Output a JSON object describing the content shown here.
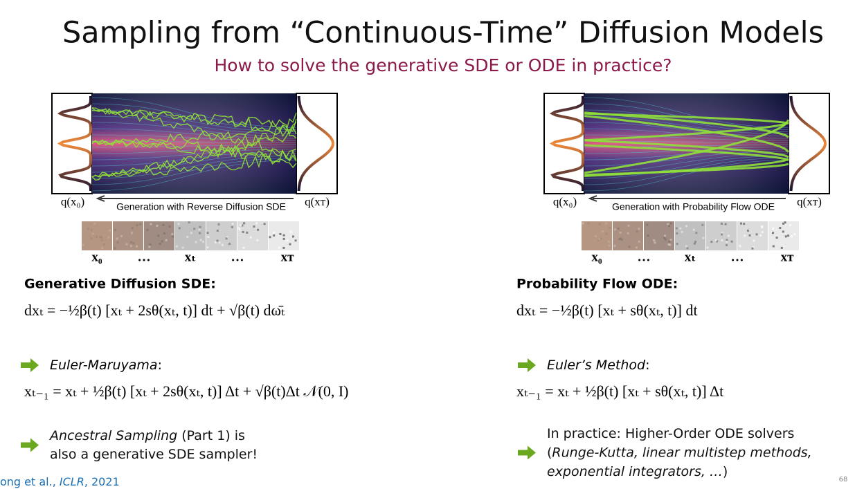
{
  "title": "Sampling from “Continuous-Time” Diffusion Models",
  "subtitle": "How to solve the generative SDE or ODE in practice?",
  "panels": [
    {
      "left_label": "q(x₀)",
      "right_label": "q(xᴛ)",
      "caption": "Generation with Reverse Diffusion SDE",
      "strip_labels": [
        "x₀",
        "…",
        "xₜ",
        "…",
        "xᴛ"
      ],
      "heading": "Generative Diffusion SDE:",
      "equation": "dxₜ = −½β(t) [xₜ + 2sθ(xₜ, t)] dt + √β(t) dω̄ₜ",
      "method": "Euler-Maruyama",
      "method_suffix": ":",
      "update": "xₜ₋₁ = xₜ + ½β(t) [xₜ + 2sθ(xₜ, t)] Δt + √β(t)Δt 𝒩(0, I)",
      "note": [
        [
          {
            "text": "Ancestral Sampling",
            "italic": true
          },
          {
            "text": " (Part 1) is",
            "italic": false
          }
        ],
        [
          {
            "text": "also a generative SDE sampler!",
            "italic": false
          }
        ]
      ]
    },
    {
      "left_label": "q(x₀)",
      "right_label": "q(xᴛ)",
      "caption": "Generation with Probability Flow ODE",
      "strip_labels": [
        "x₀",
        "…",
        "xₜ",
        "…",
        "xᴛ"
      ],
      "heading": "Probability Flow ODE:",
      "equation": "dxₜ = −½β(t) [xₜ + sθ(xₜ, t)] dt",
      "method": "Euler’s Method",
      "method_suffix": ":",
      "update": "xₜ₋₁ = xₜ + ½β(t) [xₜ + sθ(xₜ, t)] Δt",
      "note": [
        [
          {
            "text": "In practice: Higher-Order ODE solvers",
            "italic": false
          }
        ],
        [
          {
            "text": "(",
            "italic": false
          },
          {
            "text": "Runge-Kutta, linear multistep methods,",
            "italic": true
          }
        ],
        [
          {
            "text": "exponential integrators, …",
            "italic": true
          },
          {
            "text": ")",
            "italic": false
          }
        ]
      ]
    }
  ],
  "citation": [
    {
      "text": "ong et al., ",
      "italic": false
    },
    {
      "text": "ICLR",
      "italic": true
    },
    {
      "text": ", 2021",
      "italic": false
    }
  ],
  "page_number": "68"
}
